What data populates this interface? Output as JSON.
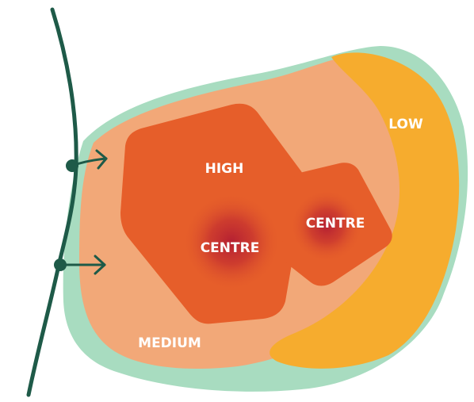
{
  "diagram": {
    "labels": {
      "low": "LOW",
      "high": "HIGH",
      "centre_main": "CENTRE",
      "centre_secondary": "CENTRE",
      "medium": "MEDIUM"
    },
    "colors": {
      "outer_zone": "#a8dcc0",
      "medium_zone": "#f2a878",
      "low_zone": "#f6ac2e",
      "high_zone": "#e65e2a",
      "centre_core": "#b52032",
      "boundary_line": "#1e5a48",
      "label_text": "#ffffff",
      "background": "#ffffff"
    }
  }
}
